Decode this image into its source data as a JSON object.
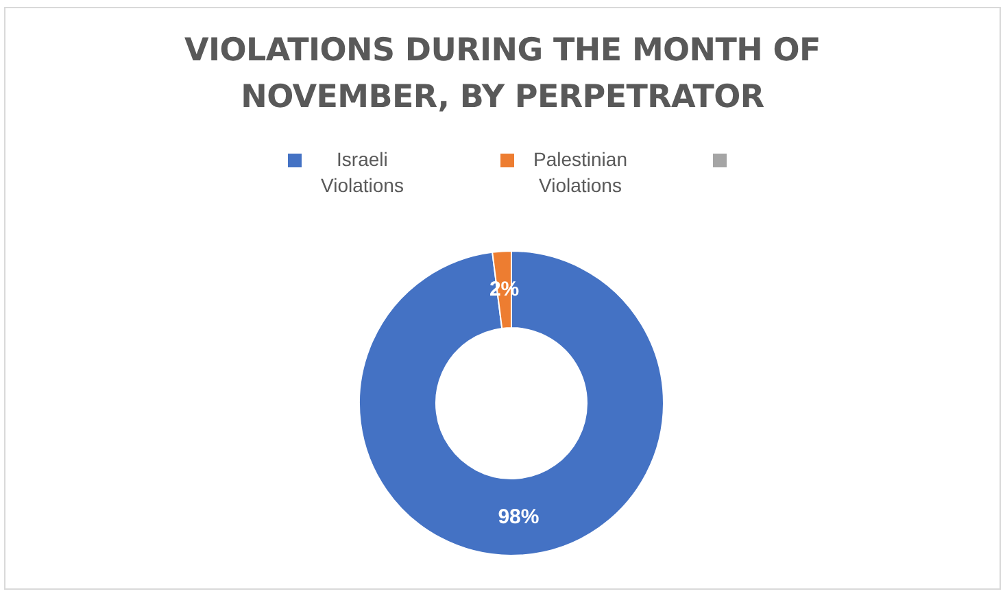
{
  "chart_data": {
    "type": "donut",
    "title": "VIOLATIONS DURING THE MONTH OF NOVEMBER, BY PERPETRATOR",
    "categories": [
      "Israeli Violations",
      "Palestinian Violations",
      null
    ],
    "values": [
      98,
      2,
      0
    ],
    "colors": [
      "#4472c4",
      "#ed7d31",
      "#a5a5a5"
    ],
    "value_labels": [
      "98%",
      "2%",
      null
    ],
    "legend": "top"
  }
}
